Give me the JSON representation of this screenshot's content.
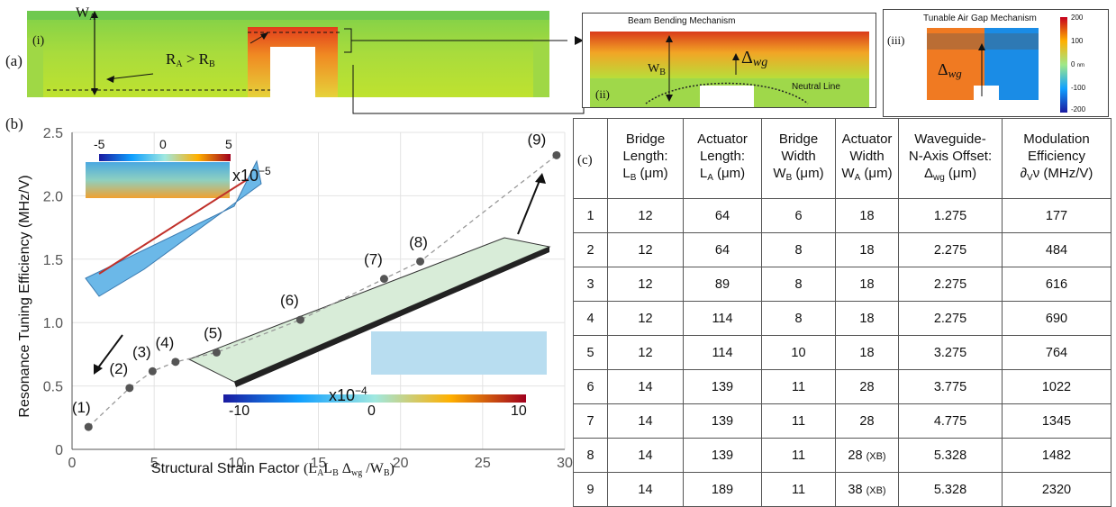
{
  "panel_a": {
    "label": "(a)",
    "sub_i": "(i)",
    "W_A": "W",
    "W_A_sub": "A",
    "radius_label_R": "R",
    "radius_sub_A": "A",
    "radius_gt": " > R",
    "radius_sub_B": "B",
    "sub_ii": "(ii)",
    "beam_title": "Beam Bending Mechanism",
    "W_B": "W",
    "W_B_sub": "B",
    "delta_wg": "Δ",
    "delta_wg_sub": "wg",
    "neutral_line": "Neutral Line",
    "sub_iii": "(iii)",
    "gap_title": "Tunable Air Gap Mechanism",
    "colorbar_ticks": [
      "200",
      "100",
      "0",
      "-100",
      "-200"
    ],
    "colorbar_unit": "nm"
  },
  "panel_b": {
    "label": "(b)",
    "inset_top_ticks": [
      "-5",
      "0",
      "5"
    ],
    "inset_top_scale": "x10",
    "inset_top_exp": "−5",
    "inset_bottom_ticks": [
      "-10",
      "0",
      "10"
    ],
    "inset_bottom_scale": "x10",
    "inset_bottom_exp": "−4"
  },
  "chart_data": {
    "type": "scatter",
    "xlabel": "Structural Strain Factor",
    "xlabel_formula": "(L",
    "xlabel_parts": [
      "A",
      "L",
      "B",
      " Δ",
      "wg",
      " /W",
      "B",
      ")"
    ],
    "ylabel": "Resonance Tuning Efficiency (MHz/V)",
    "xlim": [
      0,
      30
    ],
    "ylim": [
      0,
      2.5
    ],
    "x_ticks": [
      0,
      5,
      10,
      15,
      20,
      25,
      30
    ],
    "y_ticks": [
      0,
      0.5,
      1.0,
      1.5,
      2.0,
      2.5
    ],
    "y_tick_labels": [
      "0",
      "0.5",
      "1.0",
      "1.5",
      "2.0",
      "2.5"
    ],
    "grid": true,
    "points": [
      {
        "label": "(1)",
        "x": 1.0,
        "y": 0.177
      },
      {
        "label": "(2)",
        "x": 3.5,
        "y": 0.484
      },
      {
        "label": "(3)",
        "x": 4.9,
        "y": 0.616
      },
      {
        "label": "(4)",
        "x": 6.3,
        "y": 0.69
      },
      {
        "label": "(5)",
        "x": 8.8,
        "y": 0.764
      },
      {
        "label": "(6)",
        "x": 13.9,
        "y": 1.022
      },
      {
        "label": "(7)",
        "x": 19.0,
        "y": 1.345
      },
      {
        "label": "(8)",
        "x": 21.2,
        "y": 1.482
      },
      {
        "label": "(9)",
        "x": 29.5,
        "y": 2.32
      }
    ]
  },
  "panel_c": {
    "label": "(c)",
    "headers": [
      {
        "l1": "Bridge",
        "l2": "Length:",
        "l3": "L",
        "sub": "B",
        "unit": " (μm)"
      },
      {
        "l1": "Actuator",
        "l2": "Length:",
        "l3": "L",
        "sub": "A",
        "unit": " (μm)"
      },
      {
        "l1": "Bridge",
        "l2": "Width",
        "l3": "W",
        "sub": "B",
        "unit": " (μm)"
      },
      {
        "l1": "Actuator",
        "l2": "Width",
        "l3": "W",
        "sub": "A",
        "unit": " (μm)"
      },
      {
        "l1": "Waveguide-",
        "l2": "N-Axis Offset:",
        "l3": "Δ",
        "sub": "wg",
        "unit": " (μm)"
      },
      {
        "l1": "Modulation",
        "l2": "Efficiency",
        "l3": "∂",
        "sub": "V",
        "unit": "ν (MHz/V)"
      }
    ],
    "rows": [
      {
        "n": "1",
        "lb": "12",
        "la": "64",
        "wb": "6",
        "wa": "18",
        "xb": "",
        "dwg": "1.275",
        "eff": "177"
      },
      {
        "n": "2",
        "lb": "12",
        "la": "64",
        "wb": "8",
        "wa": "18",
        "xb": "",
        "dwg": "2.275",
        "eff": "484"
      },
      {
        "n": "3",
        "lb": "12",
        "la": "89",
        "wb": "8",
        "wa": "18",
        "xb": "",
        "dwg": "2.275",
        "eff": "616"
      },
      {
        "n": "4",
        "lb": "12",
        "la": "114",
        "wb": "8",
        "wa": "18",
        "xb": "",
        "dwg": "2.275",
        "eff": "690"
      },
      {
        "n": "5",
        "lb": "12",
        "la": "114",
        "wb": "10",
        "wa": "18",
        "xb": "",
        "dwg": "3.275",
        "eff": "764"
      },
      {
        "n": "6",
        "lb": "14",
        "la": "139",
        "wb": "11",
        "wa": "28",
        "xb": "",
        "dwg": "3.775",
        "eff": "1022"
      },
      {
        "n": "7",
        "lb": "14",
        "la": "139",
        "wb": "11",
        "wa": "28",
        "xb": "",
        "dwg": "4.775",
        "eff": "1345"
      },
      {
        "n": "8",
        "lb": "14",
        "la": "139",
        "wb": "11",
        "wa": "28",
        "xb": "(XB)",
        "dwg": "5.328",
        "eff": "1482"
      },
      {
        "n": "9",
        "lb": "14",
        "la": "189",
        "wb": "11",
        "wa": "38",
        "xb": "(XB)",
        "dwg": "5.328",
        "eff": "2320"
      }
    ]
  }
}
